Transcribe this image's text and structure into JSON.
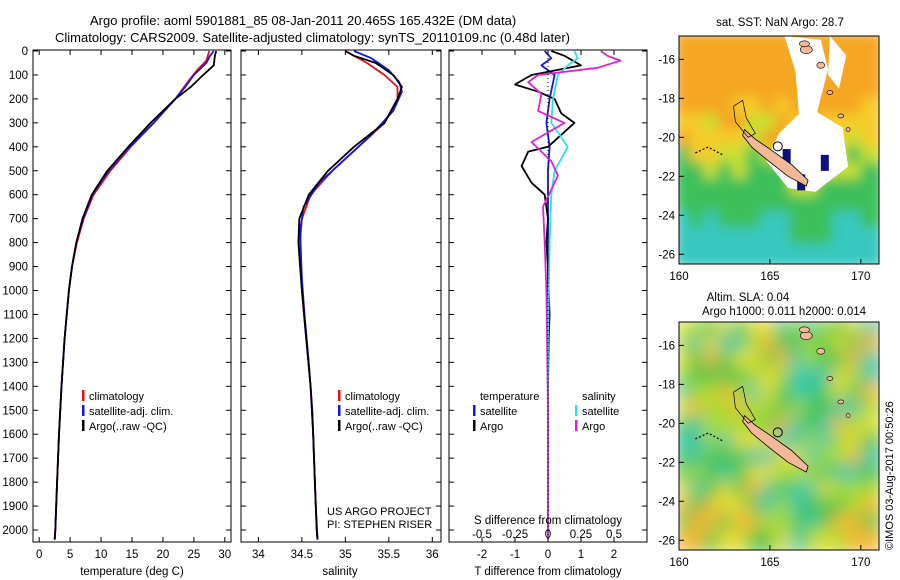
{
  "header": {
    "title_line1": "Argo profile: aoml 5901881_85 08-Jan-2011 20.465S 165.432E (DM data)",
    "title_line2": "Climatology: CARS2009. Satellite-adjusted climatology: synTS_20110109.nc (0.48d later)"
  },
  "colors": {
    "climatology": "#e8101a",
    "satellite": "#1515e6",
    "argo": "#000000",
    "sal_satellite": "#2ee0e6",
    "sal_argo": "#e020d8",
    "land": "#f2b898",
    "missing": "#ffffff"
  },
  "legend": {
    "climatology": "climatology",
    "satellite_adj": "satellite-adj. clim.",
    "argo": "Argo(..raw -QC)",
    "temperature_hdr": "temperature",
    "salinity_hdr": "salinity",
    "satellite": "satellite",
    "argo_short": "Argo"
  },
  "project": {
    "line1": "US ARGO PROJECT",
    "line2": "PI: STEPHEN RISER"
  },
  "credit": "©IMOS 03-Aug-2017 00:50:26",
  "chart_data": [
    {
      "type": "line",
      "name": "temperature-profile",
      "xlabel": "temperature (deg C)",
      "xlim": [
        -1,
        31
      ],
      "ylim": [
        2050,
        0
      ],
      "xticks": [
        0,
        5,
        10,
        15,
        20,
        25,
        30
      ],
      "yticks": [
        0,
        100,
        200,
        300,
        400,
        500,
        600,
        700,
        800,
        900,
        1000,
        1100,
        1200,
        1300,
        1400,
        1500,
        1600,
        1700,
        1800,
        1900,
        2000
      ],
      "series": [
        {
          "key": "climatology",
          "depth": [
            0,
            40,
            80,
            130,
            200,
            300,
            400,
            500,
            600,
            700,
            800,
            900,
            1000,
            1200,
            1400,
            1600,
            1800,
            2000,
            2040
          ],
          "values": [
            27.5,
            27,
            25.5,
            24,
            22,
            18.5,
            14.8,
            11.5,
            8.8,
            7.2,
            6.1,
            5.3,
            4.8,
            4.1,
            3.6,
            3.2,
            2.9,
            2.6,
            2.5
          ]
        },
        {
          "key": "satellite",
          "depth": [
            0,
            20,
            50,
            100,
            150,
            200,
            300,
            400,
            500,
            600,
            700,
            800,
            900,
            1000,
            1200,
            1400,
            1600,
            1800,
            2000,
            2040
          ],
          "values": [
            28.2,
            27.6,
            27,
            25,
            23.6,
            22,
            18.5,
            14.6,
            11.2,
            8.6,
            7.1,
            6.0,
            5.3,
            4.8,
            4.1,
            3.6,
            3.2,
            2.9,
            2.6,
            2.5
          ]
        },
        {
          "key": "argo",
          "depth": [
            0,
            20,
            60,
            100,
            150,
            200,
            300,
            400,
            500,
            600,
            700,
            800,
            900,
            1000,
            1200,
            1400,
            1600,
            1800,
            2000,
            2040
          ],
          "values": [
            28.6,
            28.4,
            28.2,
            26.5,
            24.5,
            22,
            18,
            14.4,
            11,
            8.5,
            7.0,
            6.0,
            5.3,
            4.8,
            4.1,
            3.6,
            3.2,
            2.9,
            2.6,
            2.5
          ]
        }
      ]
    },
    {
      "type": "line",
      "name": "salinity-profile",
      "xlabel": "salinity",
      "xlim": [
        33.8,
        36.1
      ],
      "ylim": [
        2050,
        0
      ],
      "xticks": [
        34,
        34.5,
        35,
        35.5,
        36
      ],
      "series": [
        {
          "key": "climatology",
          "depth": [
            0,
            50,
            100,
            150,
            200,
            300,
            400,
            500,
            600,
            700,
            800,
            900,
            1000,
            1200,
            1400,
            1600,
            1800,
            2000,
            2040
          ],
          "values": [
            35.0,
            35.25,
            35.45,
            35.6,
            35.6,
            35.45,
            35.15,
            34.85,
            34.6,
            34.5,
            34.48,
            34.49,
            34.5,
            34.55,
            34.6,
            34.63,
            34.65,
            34.67,
            34.68
          ]
        },
        {
          "key": "satellite",
          "depth": [
            0,
            30,
            80,
            130,
            170,
            250,
            350,
            450,
            550,
            650,
            750,
            850,
            950,
            1100,
            1300,
            1500,
            1700,
            1900,
            2040
          ],
          "values": [
            35.1,
            35.3,
            35.5,
            35.62,
            35.65,
            35.55,
            35.3,
            35.0,
            34.7,
            34.52,
            34.48,
            34.49,
            34.5,
            34.53,
            34.58,
            34.62,
            34.64,
            34.66,
            34.68
          ]
        },
        {
          "key": "argo",
          "depth": [
            0,
            20,
            50,
            100,
            150,
            200,
            300,
            400,
            500,
            600,
            700,
            800,
            900,
            1000,
            1200,
            1400,
            1600,
            1800,
            2000,
            2040
          ],
          "values": [
            35.0,
            35.1,
            35.35,
            35.55,
            35.65,
            35.6,
            35.45,
            35.1,
            34.8,
            34.58,
            34.47,
            34.46,
            34.48,
            34.5,
            34.55,
            34.6,
            34.63,
            34.65,
            34.67,
            34.68
          ]
        }
      ]
    },
    {
      "type": "line",
      "name": "difference-profile",
      "xlabel": "T difference from climatology",
      "xlabel_top": "S difference from climatology",
      "xlim": [
        -3,
        3
      ],
      "ylim": [
        2050,
        0
      ],
      "xticks": [
        -2,
        -1,
        0,
        1,
        2
      ],
      "xticks_top": [
        "-0.5",
        "-0.25",
        "0",
        "0.25",
        "0.5"
      ],
      "xticks_top_pos": [
        -2,
        -1,
        0,
        1,
        2
      ],
      "series": [
        {
          "key": "t_satellite",
          "depth": [
            0,
            30,
            60,
            100,
            200,
            300,
            400,
            500,
            700,
            900,
            1200,
            1500,
            1800,
            2040
          ],
          "values": [
            -0.1,
            0.1,
            -0.2,
            0.2,
            0.05,
            -0.05,
            0.05,
            0,
            0,
            0,
            0,
            0,
            0,
            0
          ]
        },
        {
          "key": "t_argo",
          "depth": [
            0,
            20,
            60,
            100,
            140,
            170,
            200,
            260,
            300,
            400,
            420,
            480,
            550,
            600,
            700,
            800,
            900,
            1000,
            1100,
            1200,
            1400,
            1600,
            2040
          ],
          "values": [
            0.1,
            0.5,
            1.0,
            -0.5,
            -1.0,
            -0.3,
            0.2,
            0.4,
            0.8,
            0,
            -0.6,
            -0.8,
            -0.5,
            -0.1,
            0.0,
            -0.05,
            0.0,
            0.02,
            0.05,
            0.02,
            0.0,
            0.0,
            0.0
          ]
        },
        {
          "key": "s_satellite",
          "depth": [
            0,
            30,
            60,
            100,
            200,
            300,
            400,
            500,
            600,
            800,
            1200,
            2040
          ],
          "values": [
            0.8,
            0.9,
            0.6,
            0.3,
            0.15,
            0.1,
            0.6,
            0.2,
            0.1,
            0.05,
            0.0,
            0.0
          ]
        },
        {
          "key": "s_argo",
          "depth": [
            0,
            20,
            40,
            70,
            100,
            130,
            180,
            250,
            300,
            380,
            420,
            460,
            520,
            580,
            650,
            800,
            1000,
            1500,
            2040
          ],
          "values": [
            1.6,
            1.8,
            2.2,
            1.5,
            -0.3,
            -0.6,
            -0.2,
            -0.3,
            0.5,
            -0.5,
            -0.2,
            0.1,
            0.3,
            0.1,
            -0.15,
            -0.1,
            -0.05,
            0.0,
            0.0
          ]
        }
      ]
    },
    {
      "type": "heatmap",
      "name": "sst-map",
      "title": "sat. SST: NaN Argo: 28.7",
      "xlim": [
        160,
        171
      ],
      "ylim": [
        -26.5,
        -14.8
      ],
      "xticks": [
        160,
        165,
        170
      ],
      "yticks": [
        -16,
        -18,
        -20,
        -22,
        -24,
        -26
      ],
      "profile_location": [
        165.432,
        -20.465
      ]
    },
    {
      "type": "heatmap",
      "name": "sla-map",
      "title_line1": "Altim. SLA: 0.04",
      "title_line2": "Argo h1000: 0.011 h2000: 0.014",
      "xlim": [
        160,
        171
      ],
      "ylim": [
        -26.5,
        -14.8
      ],
      "xticks": [
        160,
        165,
        170
      ],
      "yticks": [
        -16,
        -18,
        -20,
        -22,
        -24,
        -26
      ],
      "profile_location": [
        165.432,
        -20.465
      ]
    }
  ]
}
